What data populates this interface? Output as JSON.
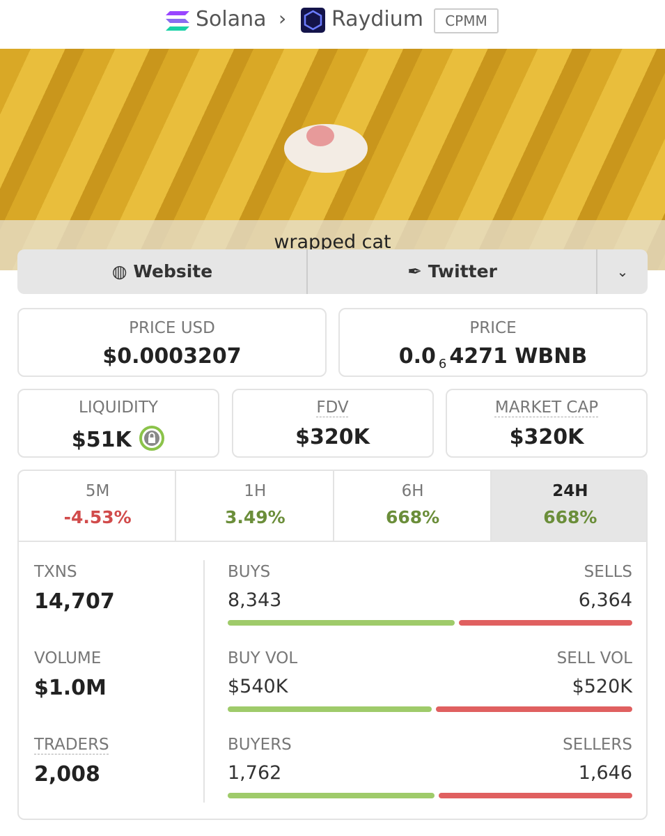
{
  "breadcrumb": {
    "chain": "Solana",
    "dex": "Raydium",
    "badge": "CPMM"
  },
  "banner": {
    "caption": "wrapped cat"
  },
  "links": {
    "website": "Website",
    "twitter": "Twitter"
  },
  "price_usd": {
    "label": "PRICE USD",
    "value": "$0.0003207"
  },
  "price": {
    "label": "PRICE",
    "prefix": "0.0",
    "zeros": "6",
    "digits": "4271 WBNB"
  },
  "stats": [
    {
      "label": "LIQUIDITY",
      "value": "$51K"
    },
    {
      "label": "FDV",
      "value": "$320K"
    },
    {
      "label": "MARKET CAP",
      "value": "$320K"
    }
  ],
  "changes": [
    {
      "period": "5M",
      "value": "-4.53%"
    },
    {
      "period": "1H",
      "value": "3.49%"
    },
    {
      "period": "6H",
      "value": "668%"
    },
    {
      "period": "24H",
      "value": "668%"
    }
  ],
  "totals": [
    {
      "label": "TXNS",
      "value": "14,707"
    },
    {
      "label": "VOLUME",
      "value": "$1.0M"
    },
    {
      "label": "TRADERS",
      "value": "2,008"
    }
  ],
  "splits": [
    {
      "left_label": "BUYS",
      "left": {
        "value": 8343,
        "label": "8,343"
      },
      "right_label": "SELLS",
      "right": {
        "value": 6364,
        "label": "6,364"
      }
    },
    {
      "left_label": "BUY VOL",
      "left": {
        "value": 540000,
        "label": "$540K"
      },
      "right_label": "SELL VOL",
      "right": {
        "value": 520000,
        "label": "$520K"
      }
    },
    {
      "left_label": "BUYERS",
      "left": {
        "value": 1762,
        "label": "1,762"
      },
      "right_label": "SELLERS",
      "right": {
        "value": 1646,
        "label": "1,646"
      }
    }
  ]
}
